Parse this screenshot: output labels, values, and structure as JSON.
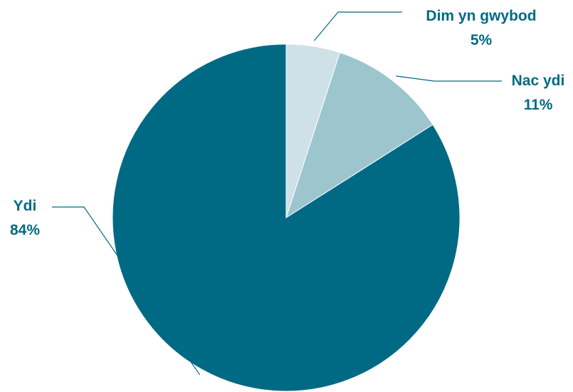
{
  "chart_data": {
    "type": "pie",
    "slices": [
      {
        "label": "Dim yn gwybod",
        "value": 5,
        "value_label": "5%",
        "color": "#cde1e6"
      },
      {
        "label": "Nac ydi",
        "value": 11,
        "value_label": "11%",
        "color": "#9dc5ce"
      },
      {
        "label": "Ydi",
        "value": 84,
        "value_label": "84%",
        "color": "#006a84"
      }
    ],
    "start_angle_deg": 0,
    "direction": "clockwise",
    "label_color": "#006a84",
    "leader_color": "#006a84"
  }
}
